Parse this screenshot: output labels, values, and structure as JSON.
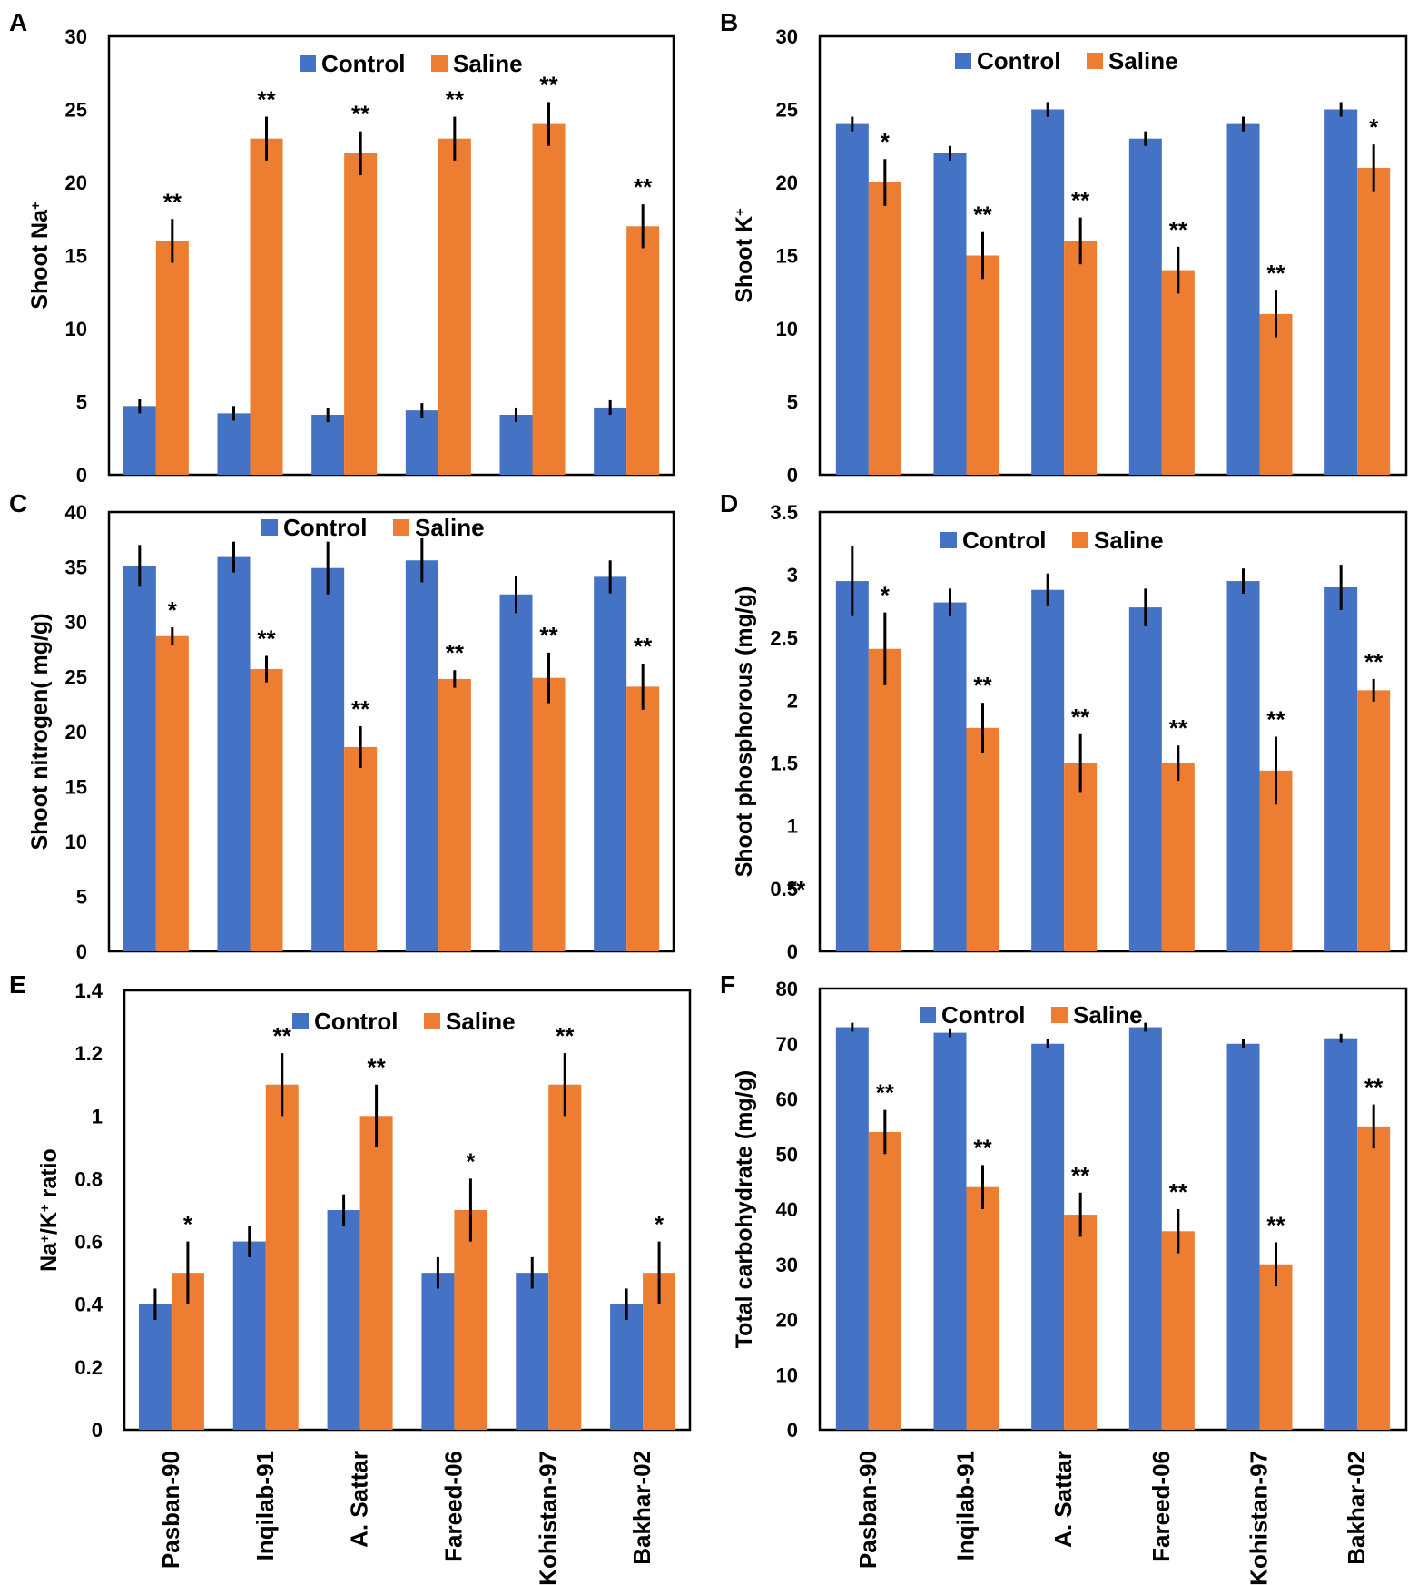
{
  "colors": {
    "control": "#4472C4",
    "saline": "#ED7D31"
  },
  "legend": {
    "control": "Control",
    "saline": "Saline"
  },
  "chart_data": [
    {
      "type": "bar",
      "panel": "A",
      "ylabel": "Shoot Na+",
      "ylim": [
        0,
        30
      ],
      "yticks": [
        0,
        5,
        10,
        15,
        20,
        25,
        30
      ],
      "legend_position": "top",
      "categories": [
        "Pasban-90",
        "Inqilab-91",
        "A. Sattar",
        "Fareed-06",
        "Kohistan-97",
        "Bakhar-02"
      ],
      "series": [
        {
          "name": "Control",
          "values": [
            4.7,
            4.2,
            4.1,
            4.4,
            4.1,
            4.6
          ],
          "errors": [
            0.5,
            0.5,
            0.5,
            0.5,
            0.5,
            0.5
          ],
          "sig": [
            "",
            "",
            "",
            "",
            "",
            ""
          ]
        },
        {
          "name": "Saline",
          "values": [
            16,
            23,
            22,
            23,
            24,
            17
          ],
          "errors": [
            1.5,
            1.5,
            1.5,
            1.5,
            1.5,
            1.5
          ],
          "sig": [
            "**",
            "**",
            "**",
            "**",
            "**",
            "**"
          ]
        }
      ]
    },
    {
      "type": "bar",
      "panel": "B",
      "ylabel": "Shoot K+",
      "ylim": [
        0,
        30
      ],
      "yticks": [
        0,
        5,
        10,
        15,
        20,
        25,
        30
      ],
      "legend_position": "top",
      "categories": [
        "Pasban-90",
        "Inqilab-91",
        "A. Sattar",
        "Fareed-06",
        "Kohistan-97",
        "Bakhar-02"
      ],
      "series": [
        {
          "name": "Control",
          "values": [
            24,
            22,
            25,
            23,
            24,
            25
          ],
          "errors": [
            0.5,
            0.5,
            0.5,
            0.5,
            0.5,
            0.5
          ],
          "sig": [
            "",
            "",
            "",
            "",
            "",
            ""
          ]
        },
        {
          "name": "Saline",
          "values": [
            20,
            15,
            16,
            14,
            11,
            21
          ],
          "errors": [
            1.6,
            1.6,
            1.6,
            1.6,
            1.6,
            1.6
          ],
          "sig": [
            "*",
            "**",
            "**",
            "**",
            "**",
            "*"
          ]
        }
      ]
    },
    {
      "type": "bar",
      "panel": "C",
      "ylabel": "Shoot nitrogen( mg/g)",
      "ylim": [
        0,
        40
      ],
      "yticks": [
        0,
        5,
        10,
        15,
        20,
        25,
        30,
        35,
        40
      ],
      "legend_position": "top",
      "categories": [
        "Pasban-90",
        "Inqilab-91",
        "A. Sattar",
        "Fareed-06",
        "Kohistan-97",
        "Bakhar-02"
      ],
      "series": [
        {
          "name": "Control",
          "values": [
            35.1,
            35.9,
            34.9,
            35.6,
            32.5,
            34.1
          ],
          "errors": [
            1.9,
            1.4,
            2.4,
            2.0,
            1.7,
            1.5
          ],
          "sig": [
            "",
            "",
            "",
            "",
            "",
            ""
          ]
        },
        {
          "name": "Saline",
          "values": [
            28.7,
            25.7,
            18.6,
            24.8,
            24.9,
            24.1
          ],
          "errors": [
            0.8,
            1.2,
            1.9,
            0.8,
            2.3,
            2.1
          ],
          "sig": [
            "*",
            "**",
            "**",
            "**",
            "**",
            "**"
          ]
        }
      ]
    },
    {
      "type": "bar",
      "panel": "D",
      "ylabel": "Shoot phosphorous (mg/g)",
      "ylim": [
        0,
        3.5
      ],
      "yticks": [
        0,
        0.5,
        1,
        1.5,
        2,
        2.5,
        3,
        3.5
      ],
      "legend_position": "top",
      "categories": [
        "Pasban-90",
        "Inqilab-91",
        "A. Sattar",
        "Fareed-06",
        "Kohistan-97",
        "Bakhar-02"
      ],
      "series": [
        {
          "name": "Control",
          "values": [
            2.95,
            2.78,
            2.88,
            2.74,
            2.95,
            2.9
          ],
          "errors": [
            0.28,
            0.11,
            0.13,
            0.15,
            0.1,
            0.18
          ],
          "sig": [
            "",
            "",
            "",
            "",
            "",
            ""
          ]
        },
        {
          "name": "Saline",
          "values": [
            2.41,
            1.78,
            1.5,
            1.5,
            1.44,
            2.08
          ],
          "errors": [
            0.29,
            0.2,
            0.23,
            0.14,
            0.27,
            0.09
          ],
          "sig": [
            "*",
            "**",
            "**",
            "**",
            "**",
            "**"
          ]
        }
      ],
      "annotations": [
        "**"
      ]
    },
    {
      "type": "bar",
      "panel": "E",
      "ylabel": "Na+/K+ ratio",
      "ylim": [
        0,
        1.4
      ],
      "yticks": [
        0,
        0.2,
        0.4,
        0.6,
        0.8,
        1,
        1.2,
        1.4
      ],
      "legend_position": "top",
      "categories": [
        "Pasban-90",
        "Inqilab-91",
        "A. Sattar",
        "Fareed-06",
        "Kohistan-97",
        "Bakhar-02"
      ],
      "series": [
        {
          "name": "Control",
          "values": [
            0.4,
            0.6,
            0.7,
            0.5,
            0.5,
            0.4
          ],
          "errors": [
            0.05,
            0.05,
            0.05,
            0.05,
            0.05,
            0.05
          ],
          "sig": [
            "",
            "",
            "",
            "",
            "",
            ""
          ]
        },
        {
          "name": "Saline",
          "values": [
            0.5,
            1.1,
            1.0,
            0.7,
            1.1,
            0.5
          ],
          "errors": [
            0.1,
            0.1,
            0.1,
            0.1,
            0.1,
            0.1
          ],
          "sig": [
            "*",
            "**",
            "**",
            "*",
            "**",
            "*"
          ]
        }
      ]
    },
    {
      "type": "bar",
      "panel": "F",
      "ylabel": "Total carbohydrate (mg/g)",
      "ylim": [
        0,
        80
      ],
      "yticks": [
        0,
        10,
        20,
        30,
        40,
        50,
        60,
        70,
        80
      ],
      "legend_position": "top",
      "categories": [
        "Pasban-90",
        "Inqilab-91",
        "A. Sattar",
        "Fareed-06",
        "Kohistan-97",
        "Bakhar-02"
      ],
      "series": [
        {
          "name": "Control",
          "values": [
            73,
            72,
            70,
            73,
            70,
            71
          ],
          "errors": [
            0.8,
            0.8,
            0.8,
            0.8,
            0.8,
            0.8
          ],
          "sig": [
            "",
            "",
            "",
            "",
            "",
            ""
          ]
        },
        {
          "name": "Saline",
          "values": [
            54,
            44,
            39,
            36,
            30,
            55
          ],
          "errors": [
            4,
            4,
            4,
            4,
            4,
            4
          ],
          "sig": [
            "**",
            "**",
            "**",
            "**",
            "**",
            "**"
          ]
        }
      ]
    }
  ]
}
